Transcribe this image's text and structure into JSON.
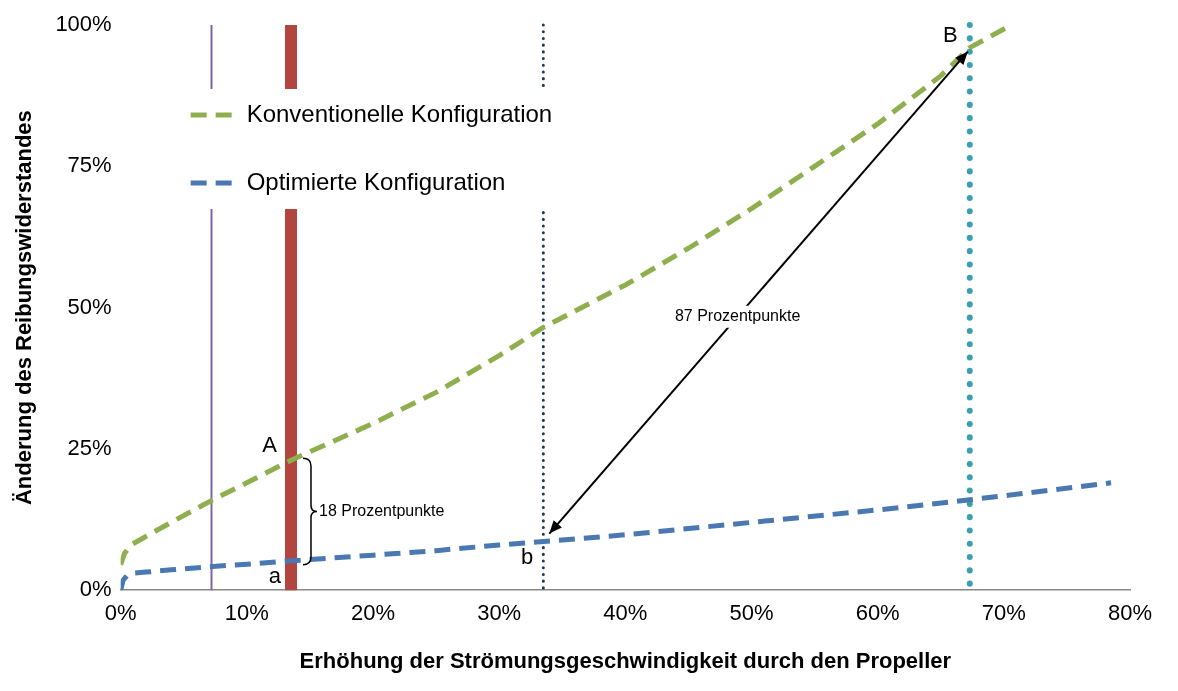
{
  "chart_data": {
    "type": "line",
    "xlabel": "Erhöhung der Strömungsgeschwindigkeit durch den Propeller",
    "ylabel": "Änderung des Reibungswiderstandes",
    "series": [
      {
        "name": "Konventionelle Konfiguration",
        "color": "#8faf4f",
        "line_style": "dashed",
        "x": [
          0,
          0.3,
          0.8,
          2,
          4,
          7.3,
          10,
          13.5,
          17,
          20,
          25,
          30,
          33.5,
          40,
          45,
          50,
          55,
          60,
          65,
          67.3,
          70.6
        ],
        "values": [
          4.5,
          6.5,
          8,
          9.5,
          12,
          16,
          19,
          23,
          26.5,
          29.5,
          35,
          41.5,
          46.5,
          54,
          60.5,
          67.5,
          75,
          82.5,
          91,
          96,
          100
        ]
      },
      {
        "name": "Optimierte Konfiguration",
        "color": "#4a78b0",
        "line_style": "dashed",
        "x": [
          0,
          0.2,
          0.5,
          1,
          2,
          4,
          7.3,
          10,
          13.5,
          20,
          25,
          30,
          33.5,
          40,
          50,
          60,
          67.3,
          73,
          78.5
        ],
        "values": [
          0,
          1.8,
          2.6,
          3,
          3.2,
          3.6,
          4.2,
          4.6,
          5.2,
          6.2,
          7,
          8,
          8.6,
          9.8,
          12,
          14.2,
          16,
          17.5,
          19
        ]
      }
    ],
    "xlim": [
      0,
      80
    ],
    "xticks": [
      {
        "value": 0,
        "label": "0%"
      },
      {
        "value": 10,
        "label": "10%"
      },
      {
        "value": 20,
        "label": "20%"
      },
      {
        "value": 30,
        "label": "30%"
      },
      {
        "value": 40,
        "label": "40%"
      },
      {
        "value": 50,
        "label": "50%"
      },
      {
        "value": 60,
        "label": "60%"
      },
      {
        "value": 70,
        "label": "70%"
      },
      {
        "value": 80,
        "label": "80%"
      }
    ],
    "ylim": [
      0,
      100
    ],
    "yticks": [
      {
        "value": 0,
        "label": "0%"
      },
      {
        "value": 25,
        "label": "25%"
      },
      {
        "value": 50,
        "label": "50%"
      },
      {
        "value": 75,
        "label": "75%"
      },
      {
        "value": 100,
        "label": "100%"
      }
    ],
    "ref_lines": [
      {
        "axis": "x",
        "value": 7.2,
        "color": "#8064a2",
        "line_style": "solid"
      },
      {
        "axis": "x",
        "value": 13.5,
        "color": "#b0463f",
        "line_style": "solid"
      },
      {
        "axis": "x",
        "value": 33.5,
        "color": "#1f3858",
        "line_style": "dotted"
      },
      {
        "axis": "x",
        "value": 67.3,
        "color": "#3aa0b0",
        "line_style": "dotted"
      }
    ],
    "annotations": [
      {
        "text": "A",
        "x": 13.5,
        "y": 23
      },
      {
        "text": "a",
        "x": 13.5,
        "y": 5.2
      },
      {
        "text": "b",
        "x": 33.5,
        "y": 8.6
      },
      {
        "text": "B",
        "x": 67.3,
        "y": 96
      },
      "18 Prozentpunkte",
      "87 Prozentpunkte"
    ],
    "legend": "top left",
    "grid": false,
    "marker": "none"
  }
}
